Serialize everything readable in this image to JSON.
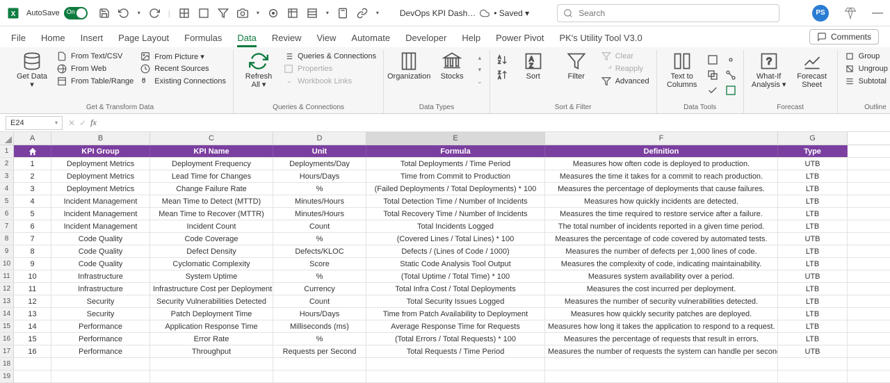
{
  "titlebar": {
    "autosave_label": "AutoSave",
    "toggle_text": "On",
    "doc_name": "DevOps KPI Dash…",
    "saved_marker": "• Saved ▾",
    "search_placeholder": "Search",
    "avatar_initials": "PS",
    "minimize": "—"
  },
  "tabs": {
    "items": [
      "File",
      "Home",
      "Insert",
      "Page Layout",
      "Formulas",
      "Data",
      "Review",
      "View",
      "Automate",
      "Developer",
      "Help",
      "Power Pivot",
      "PK's Utility Tool V3.0"
    ],
    "active_index": 5,
    "comments_label": "Comments"
  },
  "ribbon": {
    "groups": {
      "get_transform": {
        "label": "Get & Transform Data",
        "get_data": "Get Data ▾",
        "from_text_csv": "From Text/CSV",
        "from_web": "From Web",
        "from_table": "From Table/Range",
        "from_picture": "From Picture ▾",
        "recent": "Recent Sources",
        "existing": "Existing Connections"
      },
      "queries": {
        "label": "Queries & Connections",
        "refresh": "Refresh All ▾",
        "qc": "Queries & Connections",
        "props": "Properties",
        "links": "Workbook Links"
      },
      "data_types": {
        "label": "Data Types",
        "org": "Organization",
        "stocks": "Stocks"
      },
      "sort_filter": {
        "label": "Sort & Filter",
        "sort": "Sort",
        "filter": "Filter",
        "clear": "Clear",
        "reapply": "Reapply",
        "advanced": "Advanced"
      },
      "data_tools": {
        "label": "Data Tools",
        "text_cols": "Text to Columns"
      },
      "forecast": {
        "label": "Forecast",
        "whatif": "What-If Analysis ▾",
        "sheet": "Forecast Sheet"
      },
      "outline": {
        "label": "Outline",
        "group": "Group",
        "ungroup": "Ungroup",
        "subtotal": "Subtotal"
      }
    }
  },
  "fxbar": {
    "name": "E24"
  },
  "sheet": {
    "columns": [
      "A",
      "B",
      "C",
      "D",
      "E",
      "F",
      "G"
    ],
    "selected_col_index": 4,
    "headers": [
      "#",
      "KPI Group",
      "KPI Name",
      "Unit",
      "Formula",
      "Definition",
      "Type"
    ],
    "header_bg": "#7b3fa0",
    "home_icon_label": "home-icon",
    "rows": [
      [
        "1",
        "Deployment Metrics",
        "Deployment Frequency",
        "Deployments/Day",
        "Total Deployments / Time Period",
        "Measures how often code is deployed to production.",
        "UTB"
      ],
      [
        "2",
        "Deployment Metrics",
        "Lead Time for Changes",
        "Hours/Days",
        "Time from Commit to Production",
        "Measures the time it takes for a commit to reach production.",
        "LTB"
      ],
      [
        "3",
        "Deployment Metrics",
        "Change Failure Rate",
        "%",
        "(Failed Deployments / Total Deployments) * 100",
        "Measures the percentage of deployments that cause failures.",
        "LTB"
      ],
      [
        "4",
        "Incident Management",
        "Mean Time to Detect (MTTD)",
        "Minutes/Hours",
        "Total Detection Time / Number of Incidents",
        "Measures how quickly incidents are detected.",
        "LTB"
      ],
      [
        "5",
        "Incident Management",
        "Mean Time to Recover (MTTR)",
        "Minutes/Hours",
        "Total Recovery Time / Number of Incidents",
        "Measures the time required to restore service after a failure.",
        "LTB"
      ],
      [
        "6",
        "Incident Management",
        "Incident Count",
        "Count",
        "Total Incidents Logged",
        "The total number of incidents reported in a given time period.",
        "LTB"
      ],
      [
        "7",
        "Code Quality",
        "Code Coverage",
        "%",
        "(Covered Lines / Total Lines) * 100",
        "Measures the percentage of code covered by automated tests.",
        "UTB"
      ],
      [
        "8",
        "Code Quality",
        "Defect Density",
        "Defects/KLOC",
        "Defects / (Lines of Code / 1000)",
        "Measures the number of defects per 1,000 lines of code.",
        "LTB"
      ],
      [
        "9",
        "Code Quality",
        "Cyclomatic Complexity",
        "Score",
        "Static Code Analysis Tool Output",
        "Measures the complexity of code, indicating maintainability.",
        "LTB"
      ],
      [
        "10",
        "Infrastructure",
        "System Uptime",
        "%",
        "(Total Uptime / Total Time) * 100",
        "Measures system availability over a period.",
        "UTB"
      ],
      [
        "11",
        "Infrastructure",
        "Infrastructure Cost per Deployment",
        "Currency",
        "Total Infra Cost / Total Deployments",
        "Measures the cost incurred per deployment.",
        "LTB"
      ],
      [
        "12",
        "Security",
        "Security Vulnerabilities Detected",
        "Count",
        "Total Security Issues Logged",
        "Measures the number of security vulnerabilities detected.",
        "LTB"
      ],
      [
        "13",
        "Security",
        "Patch Deployment Time",
        "Hours/Days",
        "Time from Patch Availability to Deployment",
        "Measures how quickly security patches are deployed.",
        "LTB"
      ],
      [
        "14",
        "Performance",
        "Application Response Time",
        "Milliseconds (ms)",
        "Average Response Time for Requests",
        "Measures how long it takes the application to respond to a request.",
        "LTB"
      ],
      [
        "15",
        "Performance",
        "Error Rate",
        "%",
        "(Total Errors / Total Requests) * 100",
        "Measures the percentage of requests that result in errors.",
        "LTB"
      ],
      [
        "16",
        "Performance",
        "Throughput",
        "Requests per Second",
        "Total Requests / Time Period",
        "Measures the number of requests the system can handle per second.",
        "UTB"
      ]
    ],
    "empty_rows": [
      18,
      19
    ]
  }
}
